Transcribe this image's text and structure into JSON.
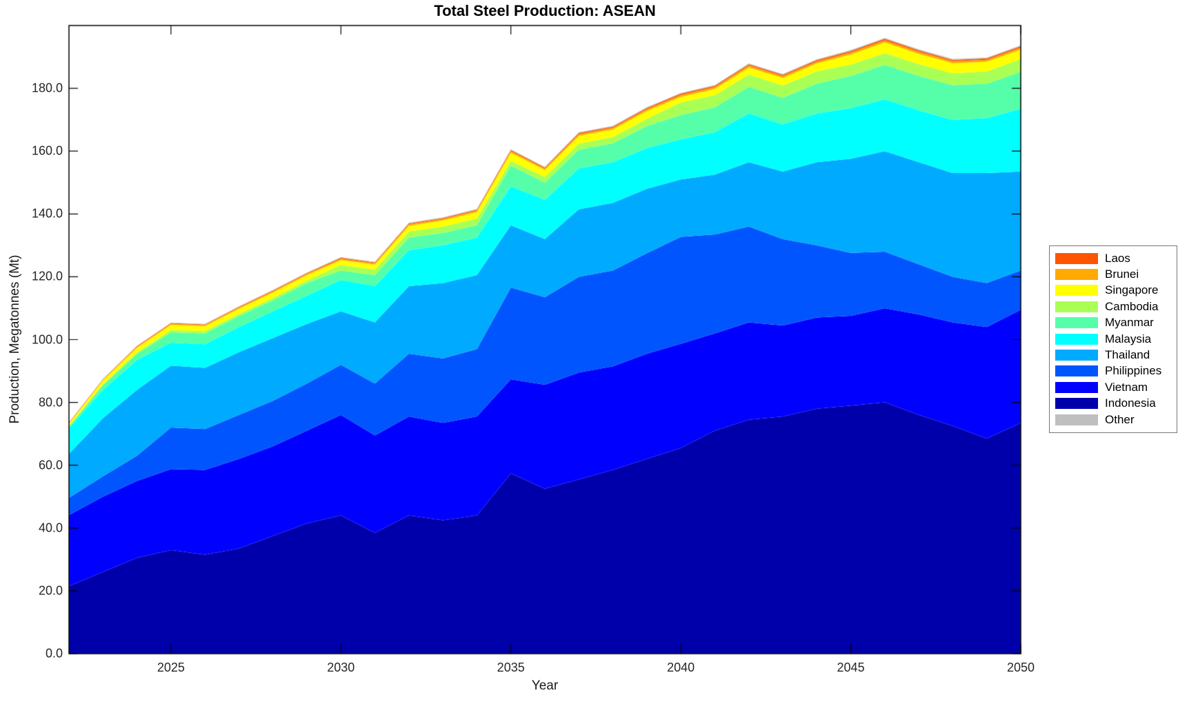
{
  "figure": {
    "title": "Total Steel Production: ASEAN",
    "xlabel": "Year",
    "ylabel": "Production, Megatonnes (Mt)"
  },
  "legend": {
    "position": "right-outside",
    "items": [
      {
        "label": "Laos",
        "color": "#FF5500"
      },
      {
        "label": "Brunei",
        "color": "#FFAA00"
      },
      {
        "label": "Singapore",
        "color": "#FFFF00"
      },
      {
        "label": "Cambodia",
        "color": "#AAFF55"
      },
      {
        "label": "Myanmar",
        "color": "#55FFAA"
      },
      {
        "label": "Malaysia",
        "color": "#00FFFF"
      },
      {
        "label": "Thailand",
        "color": "#00AAFF"
      },
      {
        "label": "Philippines",
        "color": "#0055FF"
      },
      {
        "label": "Vietnam",
        "color": "#0000FF"
      },
      {
        "label": "Indonesia",
        "color": "#0000AA"
      },
      {
        "label": "Other",
        "color": "#BFBFBF"
      }
    ]
  },
  "chart_data": {
    "type": "area",
    "stacked": true,
    "title": "Total Steel Production: ASEAN",
    "xlabel": "Year",
    "ylabel": "Production, Megatonnes (Mt)",
    "grid": false,
    "xlim": [
      2022,
      2050
    ],
    "ylim": [
      0,
      200
    ],
    "xticks": [
      2025,
      2030,
      2035,
      2040,
      2045,
      2050
    ],
    "xtick_labels": [
      "2025",
      "2030",
      "2035",
      "2040",
      "2045",
      "2050"
    ],
    "yticks": [
      0,
      20,
      40,
      60,
      80,
      100,
      120,
      140,
      160,
      180
    ],
    "ytick_labels": [
      "0.0",
      "20.0",
      "40.0",
      "60.0",
      "80.0",
      "100.0",
      "120.0",
      "140.0",
      "160.0",
      "180.0"
    ],
    "x": [
      2022,
      2023,
      2024,
      2025,
      2026,
      2027,
      2028,
      2029,
      2030,
      2031,
      2032,
      2033,
      2034,
      2035,
      2036,
      2037,
      2038,
      2039,
      2040,
      2041,
      2042,
      2043,
      2044,
      2045,
      2046,
      2047,
      2048,
      2049,
      2050
    ],
    "series": [
      {
        "name": "Indonesia",
        "color": "#0000AA",
        "values": [
          21.5,
          26,
          30.5,
          33,
          31.5,
          33.5,
          37.5,
          41.5,
          44,
          38.5,
          44,
          42.5,
          44,
          57.4,
          52.5,
          55.5,
          58.5,
          62,
          65.5,
          71,
          74.5,
          75.5,
          78,
          79,
          80,
          76,
          72.5,
          68.5,
          73.5
        ]
      },
      {
        "name": "Vietnam",
        "color": "#0000FF",
        "values": [
          22.6,
          24,
          24.5,
          25.8,
          27,
          28.5,
          28.5,
          29.5,
          32,
          31,
          31.5,
          31,
          31.5,
          30,
          33.1,
          34,
          33,
          33.5,
          33.2,
          31,
          31,
          29,
          29,
          28.6,
          30,
          32,
          33,
          35.5,
          36
        ]
      },
      {
        "name": "Philippines",
        "color": "#0055FF",
        "values": [
          5.5,
          6.5,
          8,
          13.2,
          13,
          14,
          14.5,
          15,
          16,
          16.5,
          20,
          20.5,
          21.5,
          29.2,
          27.9,
          30.5,
          30.5,
          32,
          34,
          31.5,
          30.5,
          27.5,
          23,
          20,
          18,
          16,
          14.5,
          14,
          12.5
        ]
      },
      {
        "name": "Thailand",
        "color": "#00AAFF",
        "values": [
          14,
          18.5,
          21,
          19.7,
          19.5,
          20,
          20,
          19,
          17,
          19.5,
          21.5,
          24,
          23.5,
          19.8,
          18.5,
          21.5,
          21.5,
          20.5,
          18.3,
          19,
          20.5,
          21.5,
          26.5,
          30,
          32,
          32.5,
          33,
          35,
          31.5
        ]
      },
      {
        "name": "Malaysia",
        "color": "#00FFFF",
        "values": [
          8.2,
          9,
          9.5,
          7.3,
          7.5,
          8,
          8.5,
          9,
          10,
          11.5,
          11.5,
          12,
          12,
          12.4,
          12.5,
          13,
          13,
          13,
          12.8,
          13.5,
          15.5,
          15,
          15.5,
          16.1,
          16.5,
          16.5,
          17,
          17.5,
          20
        ]
      },
      {
        "name": "Myanmar",
        "color": "#55FFAA",
        "values": [
          0.5,
          1.5,
          2,
          3.3,
          3.5,
          3.5,
          3.5,
          4,
          3,
          3.5,
          4,
          4,
          4,
          6.6,
          5.5,
          6,
          6,
          7,
          7.7,
          8,
          8.5,
          8.5,
          9.5,
          10.3,
          11,
          11,
          11,
          11,
          11.8
        ]
      },
      {
        "name": "Cambodia",
        "color": "#AAFF55",
        "values": [
          0.2,
          0.3,
          0.4,
          0.7,
          0.7,
          0.7,
          0.8,
          0.8,
          1.8,
          1.8,
          1.9,
          2,
          2.1,
          1.5,
          1.8,
          1.9,
          2,
          2.3,
          4,
          3.8,
          3.9,
          3.9,
          3.9,
          3.6,
          3.7,
          3.7,
          3.8,
          3.9,
          4
        ]
      },
      {
        "name": "Singapore",
        "color": "#FFFF00",
        "values": [
          0.7,
          1.2,
          1.5,
          1.7,
          1.6,
          1.6,
          1.7,
          1.7,
          1.5,
          1.6,
          1.8,
          1.9,
          2,
          2.6,
          2.2,
          2.5,
          2.4,
          2.5,
          1.8,
          2,
          2.2,
          2.4,
          2.5,
          3.2,
          3.4,
          3.3,
          3.2,
          3.1,
          3
        ]
      },
      {
        "name": "Brunei",
        "color": "#FFAA00",
        "values": [
          0.2,
          0.25,
          0.3,
          0.35,
          0.35,
          0.4,
          0.4,
          0.45,
          0.45,
          0.45,
          0.5,
          0.5,
          0.5,
          0.55,
          0.5,
          0.55,
          0.55,
          0.6,
          0.6,
          0.6,
          0.65,
          0.6,
          0.65,
          0.65,
          0.7,
          0.65,
          0.65,
          0.6,
          0.65
        ]
      },
      {
        "name": "Laos",
        "color": "#FF5500",
        "values": [
          0.15,
          0.15,
          0.2,
          0.2,
          0.2,
          0.25,
          0.25,
          0.25,
          0.3,
          0.25,
          0.3,
          0.3,
          0.3,
          0.35,
          0.3,
          0.35,
          0.35,
          0.35,
          0.4,
          0.4,
          0.4,
          0.4,
          0.4,
          0.45,
          0.45,
          0.45,
          0.4,
          0.4,
          0.45
        ]
      },
      {
        "name": "Other",
        "color": "#BFBFBF",
        "values": [
          0.1,
          0.1,
          0.1,
          0.15,
          0.15,
          0.15,
          0.15,
          0.15,
          0.2,
          0.15,
          0.2,
          0.2,
          0.2,
          0.2,
          0.2,
          0.25,
          0.25,
          0.25,
          0.25,
          0.25,
          0.3,
          0.25,
          0.3,
          0.3,
          0.3,
          0.3,
          0.3,
          0.3,
          0.3
        ]
      }
    ]
  }
}
